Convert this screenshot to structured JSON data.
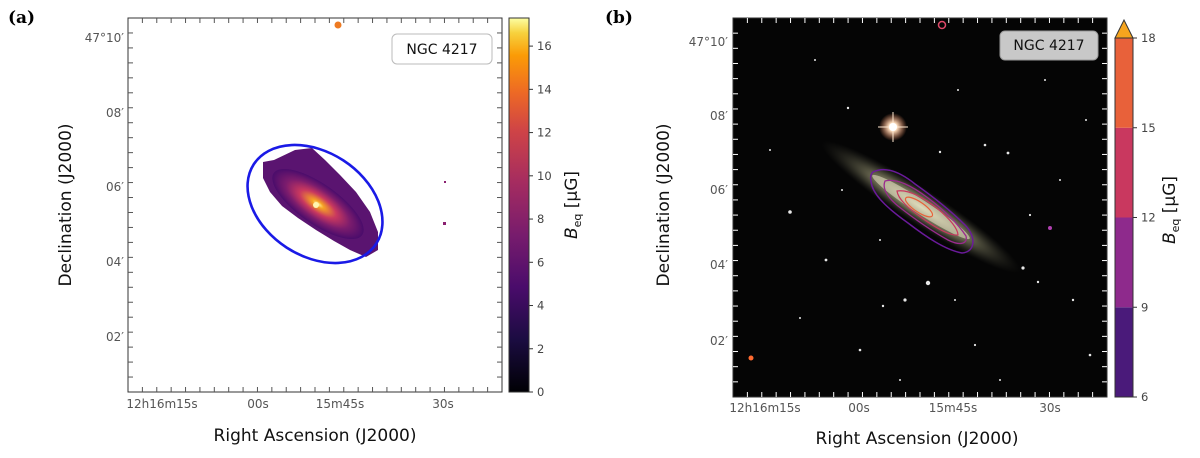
{
  "panels": [
    {
      "letter": "(a)",
      "label": "NGC 4217",
      "ra_ticks": [
        "12h16m15s",
        "00s",
        "15m45s",
        "30s"
      ],
      "dec_ticks": [
        "47°10′",
        "08′",
        "06′",
        "04′",
        "02′"
      ],
      "xlabel": "Right Ascension (J2000)",
      "ylabel": "Declination (J2000)",
      "colorbar": {
        "label": "B_eq [μG]",
        "type": "continuous",
        "colormap": "inferno",
        "range": [
          0,
          17.3
        ],
        "ticks": [
          "0",
          "2",
          "4",
          "6",
          "8",
          "10",
          "12",
          "14",
          "16"
        ]
      },
      "background": "#ffffff",
      "ellipse_color": "#1a1ae6"
    },
    {
      "letter": "(b)",
      "label": "NGC 4217",
      "ra_ticks": [
        "12h16m15s",
        "00s",
        "15m45s",
        "30s"
      ],
      "dec_ticks": [
        "47°10′",
        "08′",
        "06′",
        "04′",
        "02′"
      ],
      "xlabel": "Right Ascension (J2000)",
      "ylabel": "Declination (J2000)",
      "colorbar": {
        "label": "B_eq [μG]",
        "type": "discrete",
        "extend": "max",
        "levels": [
          6,
          9,
          12,
          15,
          18
        ],
        "ticks": [
          "6",
          "9",
          "12",
          "15",
          "18"
        ],
        "colors": [
          "#4a1a7a",
          "#8e2a8c",
          "#c9385f",
          "#e8613a",
          "#f5a41e"
        ]
      },
      "background": "#050505"
    }
  ]
}
